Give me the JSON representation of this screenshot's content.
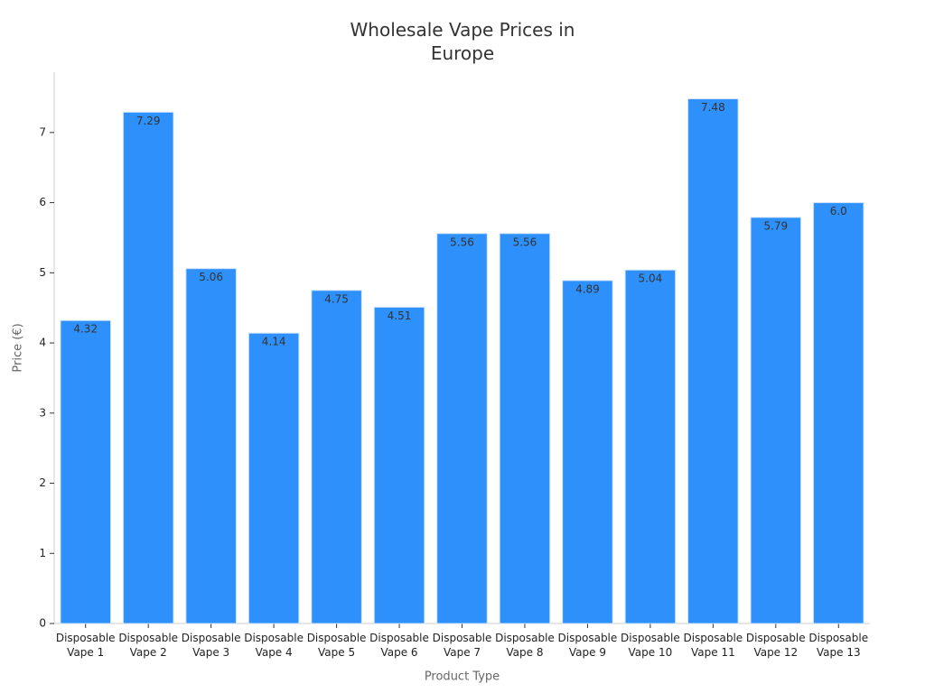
{
  "chart_data": {
    "type": "bar",
    "title": "Wholesale Vape Prices in Europe",
    "x_label": "Product Type",
    "y_label": "Price (€)",
    "categories": [
      "Disposable Vape 1",
      "Disposable Vape 2",
      "Disposable Vape 3",
      "Disposable Vape 4",
      "Disposable Vape 5",
      "Disposable Vape 6",
      "Disposable Vape 7",
      "Disposable Vape 8",
      "Disposable Vape 9",
      "Disposable Vape 10",
      "Disposable Vape 11",
      "Disposable Vape 12",
      "Disposable Vape 13"
    ],
    "values": [
      4.32,
      7.29,
      5.06,
      4.14,
      4.75,
      4.51,
      5.56,
      5.56,
      4.89,
      5.04,
      7.48,
      5.79,
      6
    ],
    "value_labels": [
      "4.32",
      "7.29",
      "5.06",
      "4.14",
      "4.75",
      "4.51",
      "5.56",
      "5.56",
      "4.89",
      "5.04",
      "7.48",
      "5.79",
      "6.0"
    ],
    "color": "#2e90fa",
    "ylim": [
      0,
      7.86
    ],
    "yticks": [
      0,
      1,
      2,
      3,
      4,
      5,
      6,
      7
    ],
    "grid": false
  }
}
